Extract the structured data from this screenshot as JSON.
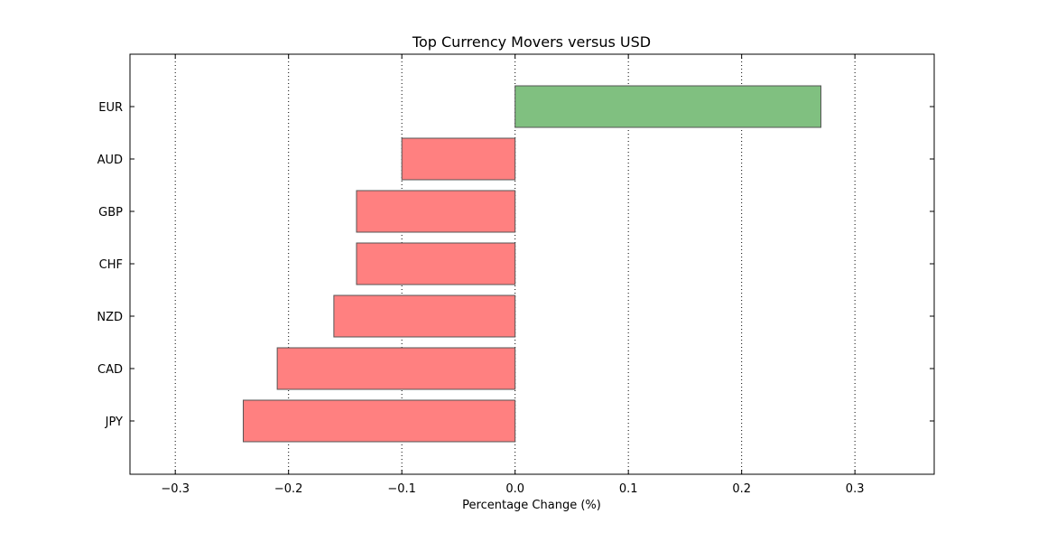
{
  "chart_data": {
    "type": "bar",
    "orientation": "horizontal",
    "title": "Top Currency Movers versus USD",
    "xlabel": "Percentage Change (%)",
    "ylabel": "",
    "categories": [
      "EUR",
      "AUD",
      "GBP",
      "CHF",
      "NZD",
      "CAD",
      "JPY"
    ],
    "values": [
      0.27,
      -0.1,
      -0.14,
      -0.14,
      -0.16,
      -0.21,
      -0.24
    ],
    "xlim": [
      -0.34,
      0.37
    ],
    "xticks": [
      -0.3,
      -0.2,
      -0.1,
      0.0,
      0.1,
      0.2,
      0.3
    ],
    "xtick_labels": [
      "−0.3",
      "−0.2",
      "−0.1",
      "0.0",
      "0.1",
      "0.2",
      "0.3"
    ],
    "grid": "vertical dotted",
    "colors": {
      "positive": "#80c080",
      "negative": "#ff8080",
      "edge": "#555555"
    }
  }
}
